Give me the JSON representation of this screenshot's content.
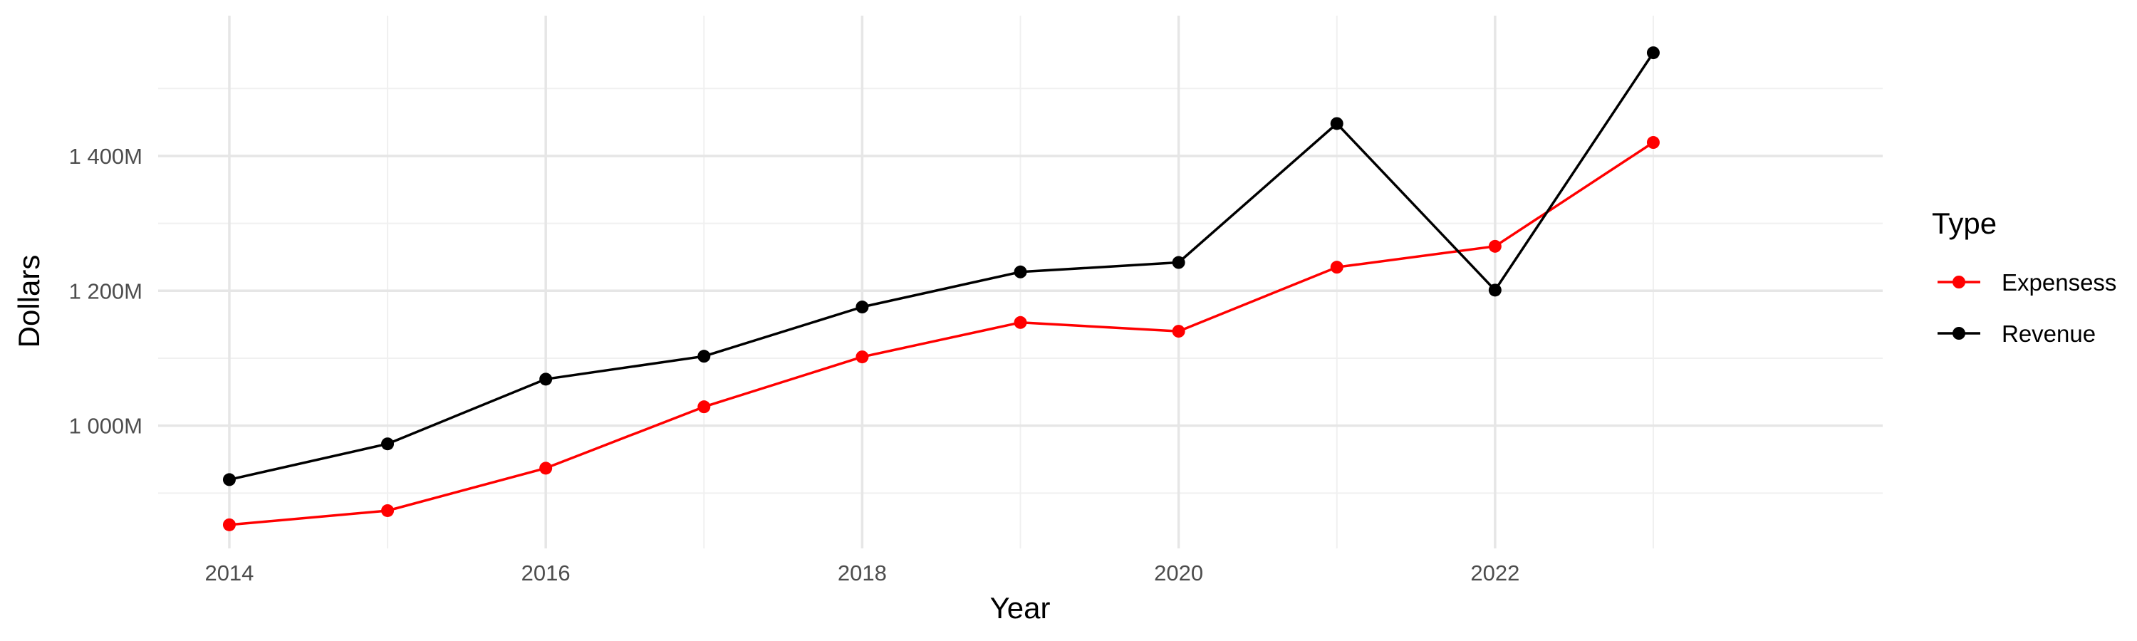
{
  "chart_data": {
    "type": "line",
    "xlabel": "Year",
    "ylabel": "Dollars",
    "x": [
      2014,
      2015,
      2016,
      2017,
      2018,
      2019,
      2020,
      2021,
      2022,
      2023
    ],
    "x_ticks": [
      2014,
      2016,
      2018,
      2020,
      2022
    ],
    "x_tick_labels": [
      "2014",
      "2016",
      "2018",
      "2020",
      "2022"
    ],
    "xlim": [
      2013.55,
      2024.45
    ],
    "y_ticks": [
      1000,
      1200,
      1400
    ],
    "y_tick_labels": [
      "1 000M",
      "1 200M",
      "1 400M"
    ],
    "y_minor_ticks": [
      900,
      1100,
      1300,
      1500
    ],
    "ylim": [
      818,
      1608
    ],
    "grid": true,
    "legend": {
      "title": "Type",
      "position": "right"
    },
    "series": [
      {
        "name": "Expensess",
        "color": "#ff0000",
        "values": [
          853,
          874,
          937,
          1028,
          1102,
          1153,
          1140,
          1235,
          1266,
          1420
        ]
      },
      {
        "name": "Revenue",
        "color": "#000000",
        "values": [
          920,
          973,
          1069,
          1103,
          1176,
          1228,
          1242,
          1448,
          1201,
          1553
        ]
      }
    ]
  }
}
